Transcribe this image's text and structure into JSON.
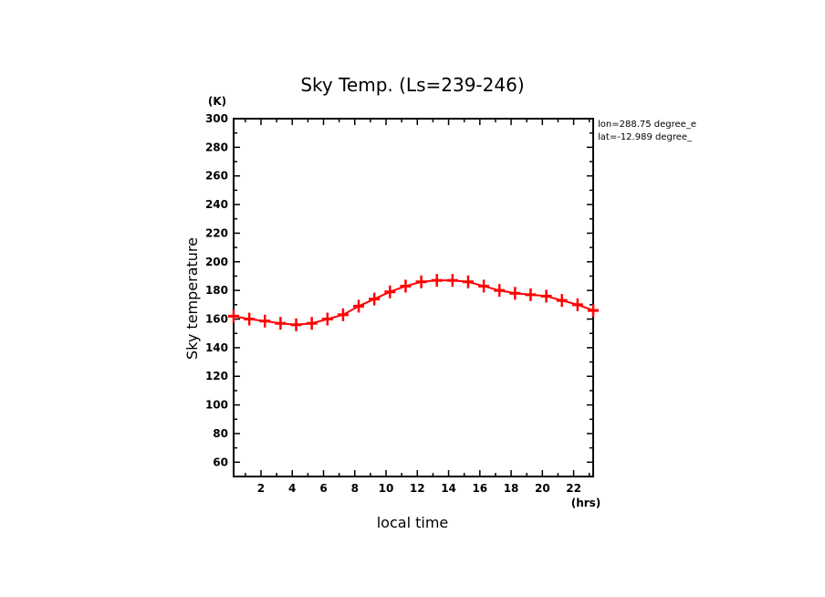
{
  "chart_data": {
    "type": "line",
    "title": "Sky Temp. (Ls=239-246)",
    "xlabel": "local time",
    "ylabel": "Sky temperature",
    "xunit": "(hrs)",
    "yunit": "(K)",
    "xlim": [
      0.25,
      23.25
    ],
    "ylim": [
      50,
      300
    ],
    "xticks": [
      2,
      4,
      6,
      8,
      10,
      12,
      14,
      16,
      18,
      20,
      22
    ],
    "yticks": [
      60,
      80,
      100,
      120,
      140,
      160,
      180,
      200,
      220,
      240,
      260,
      280,
      300
    ],
    "grid": false,
    "annotations": [
      "lon=288.75 degree_e",
      "lat=-12.989 degree_"
    ],
    "series": [
      {
        "color": "#ff0000",
        "marker": "plus",
        "x": [
          0.25,
          1.25,
          2.25,
          3.25,
          4.25,
          5.25,
          6.25,
          7.25,
          8.25,
          9.25,
          10.25,
          11.25,
          12.25,
          13.25,
          14.25,
          15.25,
          16.25,
          17.25,
          18.25,
          19.25,
          20.25,
          21.25,
          22.25,
          23.25
        ],
        "y": [
          162,
          160,
          158.6,
          157,
          156,
          157,
          160,
          163,
          169,
          174,
          179,
          183,
          186,
          187,
          187,
          186,
          183,
          180,
          178,
          177,
          176,
          173,
          170,
          166
        ]
      }
    ]
  }
}
